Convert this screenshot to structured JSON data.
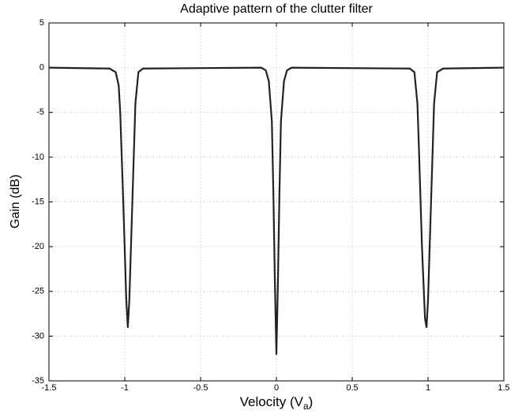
{
  "chart_data": {
    "type": "line",
    "title": "Adaptive pattern of the clutter filter",
    "xlabel": {
      "text": "Velocity (V",
      "sub": "a",
      "end": ")"
    },
    "ylabel": "Gain (dB)",
    "x": [
      -1.5,
      -1.1,
      -1.06,
      -1.04,
      -1.03,
      -1.01,
      -0.99,
      -0.98,
      -0.97,
      -0.95,
      -0.93,
      -0.91,
      -0.88,
      -0.1,
      -0.07,
      -0.05,
      -0.03,
      -0.02,
      -0.01,
      0,
      0.01,
      0.02,
      0.03,
      0.05,
      0.07,
      0.1,
      0.88,
      0.91,
      0.93,
      0.94,
      0.96,
      0.98,
      0.99,
      1.0,
      1.02,
      1.04,
      1.06,
      1.1,
      1.5
    ],
    "series": [
      {
        "name": "Gain",
        "color": "#222222",
        "values": [
          0,
          -0.1,
          -0.5,
          -2,
          -5,
          -15,
          -26,
          -29,
          -26,
          -15,
          -4,
          -0.5,
          -0.1,
          0,
          -0.3,
          -1.5,
          -6,
          -14,
          -24,
          -32,
          -24,
          -14,
          -6,
          -1.5,
          -0.3,
          0,
          -0.1,
          -0.5,
          -4,
          -9,
          -20,
          -28,
          -29,
          -26,
          -15,
          -4,
          -0.5,
          -0.1,
          0
        ]
      }
    ],
    "xlim": [
      -1.5,
      1.5
    ],
    "xticks": [
      -1.5,
      -1,
      -0.5,
      0,
      0.5,
      1,
      1.5
    ],
    "ylim": [
      -35,
      5
    ],
    "yticks": [
      5,
      0,
      -5,
      -10,
      -15,
      -20,
      -25,
      -30,
      -35
    ],
    "grid": true
  }
}
